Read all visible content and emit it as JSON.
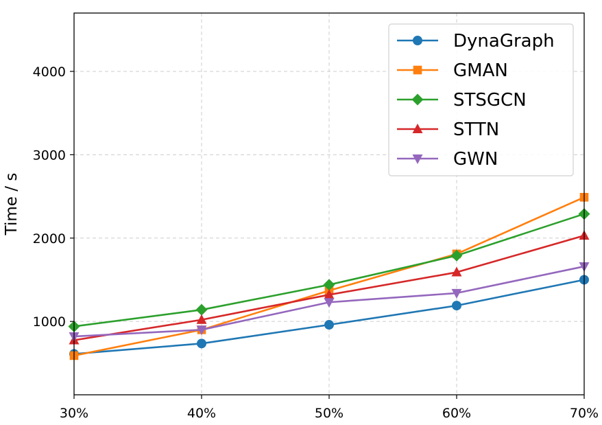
{
  "chart_data": {
    "type": "line",
    "xlabel": "",
    "ylabel": "Time / s",
    "categories": [
      "30%",
      "40%",
      "50%",
      "60%",
      "70%"
    ],
    "ylim": [
      120,
      4700
    ],
    "yticks": [
      1000,
      2000,
      3000,
      4000
    ],
    "grid": true,
    "legend_position": "top-right",
    "series": [
      {
        "name": "DynaGraph",
        "color": "#1f77b4",
        "marker": "circle",
        "values": [
          610,
          735,
          960,
          1190,
          1500
        ]
      },
      {
        "name": "GMAN",
        "color": "#ff7f0e",
        "marker": "square",
        "values": [
          590,
          900,
          1370,
          1810,
          2490
        ]
      },
      {
        "name": "STSGCN",
        "color": "#2ca02c",
        "marker": "diamond",
        "values": [
          940,
          1140,
          1440,
          1790,
          2290
        ]
      },
      {
        "name": "STTN",
        "color": "#d62728",
        "marker": "triangle-up",
        "values": [
          775,
          1020,
          1320,
          1590,
          2030
        ]
      },
      {
        "name": "GWN",
        "color": "#9467bd",
        "marker": "triangle-down",
        "values": [
          820,
          900,
          1230,
          1340,
          1660
        ]
      }
    ]
  }
}
